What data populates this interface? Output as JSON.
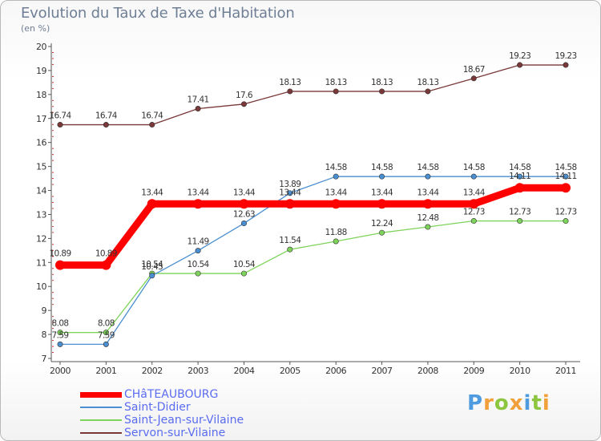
{
  "header": {
    "title": "Evolution du Taux de Taxe d'Habitation",
    "subtitle": "(en %)"
  },
  "logo": {
    "text": "ProxIti",
    "letters": [
      "P",
      "r",
      "o",
      "x",
      "i",
      "t",
      "i"
    ],
    "colors": [
      "#4f9be0",
      "#f2a03c",
      "#8cc63f",
      "#f2a03c",
      "#4f9be0",
      "#8cc63f",
      "#f2a03c"
    ]
  },
  "chart_data": {
    "type": "line",
    "title": "Evolution du Taux de Taxe d'Habitation",
    "ylabel": "(en %)",
    "xlabel": "",
    "x": [
      "2000",
      "2001",
      "2002",
      "2003",
      "2004",
      "2005",
      "2006",
      "2007",
      "2008",
      "2009",
      "2010",
      "2011"
    ],
    "ylim": [
      7,
      20
    ],
    "yticks": [
      "7",
      "8",
      "9",
      "10",
      "11",
      "12",
      "13",
      "14",
      "15",
      "16",
      "17",
      "18",
      "19",
      "20"
    ],
    "grid": false,
    "legend_position": "bottom-left",
    "series": [
      {
        "name": "CHâTEAUBOURG",
        "color": "#ff0000",
        "emphasis": true,
        "values": [
          10.89,
          10.89,
          13.44,
          13.44,
          13.44,
          13.44,
          13.44,
          13.44,
          13.44,
          13.44,
          14.11,
          14.11
        ],
        "labels": [
          "10.89",
          "10.89",
          "13.44",
          "13.44",
          "13.44",
          "13.44",
          "13.44",
          "13.44",
          "13.44",
          "13.44",
          "14.11",
          "14.11"
        ]
      },
      {
        "name": "Saint-Didier",
        "color": "#4a8fd0",
        "values": [
          7.59,
          7.59,
          10.45,
          11.49,
          12.63,
          13.89,
          14.58,
          14.58,
          14.58,
          14.58,
          14.58,
          14.58
        ],
        "labels": [
          "7.59",
          "7.59",
          "10.45",
          "11.49",
          "12.63",
          "13.89",
          "14.58",
          "14.58",
          "14.58",
          "14.58",
          "14.58",
          "14.58"
        ]
      },
      {
        "name": "Saint-Jean-sur-Vilaine",
        "color": "#7ed35a",
        "values": [
          8.08,
          8.08,
          10.54,
          10.54,
          10.54,
          11.54,
          11.88,
          12.24,
          12.48,
          12.73,
          12.73,
          12.73
        ],
        "labels": [
          "8.08",
          "8.08",
          "10.54",
          "10.54",
          "10.54",
          "11.54",
          "11.88",
          "12.24",
          "12.48",
          "12.73",
          "12.73",
          "12.73"
        ]
      },
      {
        "name": "Servon-sur-Vilaine",
        "color": "#7a3838",
        "values": [
          16.74,
          16.74,
          16.74,
          17.41,
          17.6,
          18.13,
          18.13,
          18.13,
          18.13,
          18.67,
          19.23,
          19.23
        ],
        "labels": [
          "16.74",
          "16.74",
          "16.74",
          "17.41",
          "17.6",
          "18.13",
          "18.13",
          "18.13",
          "18.13",
          "18.67",
          "19.23",
          "19.23"
        ]
      }
    ]
  }
}
